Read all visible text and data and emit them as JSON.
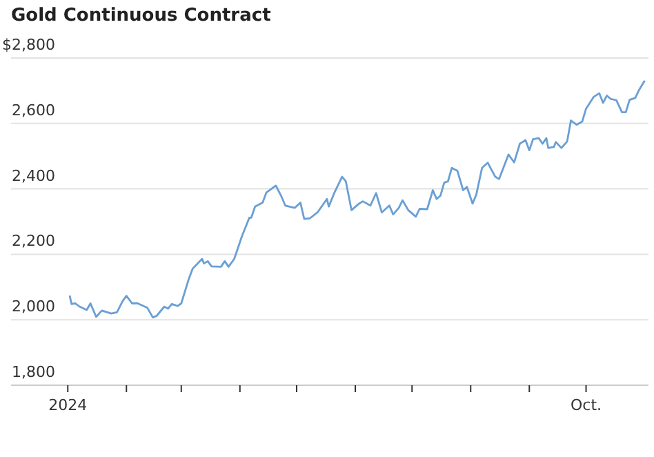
{
  "chart_data": {
    "type": "line",
    "title": "Gold Continuous Contract",
    "x": [
      "2024-01-02",
      "2024-01-03",
      "2024-01-05",
      "2024-01-07",
      "2024-01-11",
      "2024-01-13",
      "2024-01-16",
      "2024-01-19",
      "2024-01-24",
      "2024-01-27",
      "2024-01-30",
      "2024-02-01",
      "2024-02-04",
      "2024-02-07",
      "2024-02-12",
      "2024-02-15",
      "2024-02-17",
      "2024-02-21",
      "2024-02-23",
      "2024-02-25",
      "2024-02-28",
      "2024-03-01",
      "2024-03-05",
      "2024-03-07",
      "2024-03-12",
      "2024-03-13",
      "2024-03-15",
      "2024-03-17",
      "2024-03-22",
      "2024-03-24",
      "2024-03-26",
      "2024-03-29",
      "2024-04-02",
      "2024-04-06",
      "2024-04-07",
      "2024-04-09",
      "2024-04-13",
      "2024-04-15",
      "2024-04-20",
      "2024-04-23",
      "2024-04-25",
      "2024-04-30",
      "2024-05-03",
      "2024-05-05",
      "2024-05-08",
      "2024-05-12",
      "2024-05-17",
      "2024-05-18",
      "2024-05-21",
      "2024-05-25",
      "2024-05-27",
      "2024-05-30",
      "2024-06-03",
      "2024-06-05",
      "2024-06-09",
      "2024-06-12",
      "2024-06-15",
      "2024-06-19",
      "2024-06-21",
      "2024-06-24",
      "2024-06-26",
      "2024-06-29",
      "2024-07-03",
      "2024-07-05",
      "2024-07-09",
      "2024-07-12",
      "2024-07-14",
      "2024-07-16",
      "2024-07-18",
      "2024-07-20",
      "2024-07-22",
      "2024-07-25",
      "2024-07-28",
      "2024-07-30",
      "2024-08-02",
      "2024-08-04",
      "2024-08-07",
      "2024-08-10",
      "2024-08-14",
      "2024-08-16",
      "2024-08-18",
      "2024-08-21",
      "2024-08-24",
      "2024-08-27",
      "2024-08-30",
      "2024-09-01",
      "2024-09-03",
      "2024-09-06",
      "2024-09-08",
      "2024-09-10",
      "2024-09-11",
      "2024-09-14",
      "2024-09-15",
      "2024-09-18",
      "2024-09-21",
      "2024-09-23",
      "2024-09-26",
      "2024-09-29",
      "2024-10-01",
      "2024-10-05",
      "2024-10-08",
      "2024-10-10",
      "2024-10-12",
      "2024-10-14",
      "2024-10-17",
      "2024-10-20",
      "2024-10-22",
      "2024-10-24",
      "2024-10-27",
      "2024-10-29",
      "2024-11-01"
    ],
    "values": [
      2074,
      2048,
      2050,
      2041,
      2030,
      2050,
      2009,
      2028,
      2019,
      2023,
      2057,
      2073,
      2050,
      2050,
      2037,
      2007,
      2012,
      2040,
      2034,
      2048,
      2042,
      2050,
      2125,
      2156,
      2186,
      2172,
      2179,
      2163,
      2162,
      2179,
      2162,
      2186,
      2254,
      2312,
      2312,
      2346,
      2358,
      2389,
      2410,
      2376,
      2349,
      2342,
      2358,
      2308,
      2310,
      2328,
      2369,
      2346,
      2389,
      2437,
      2423,
      2335,
      2355,
      2362,
      2349,
      2387,
      2328,
      2349,
      2322,
      2342,
      2365,
      2335,
      2315,
      2339,
      2338,
      2396,
      2369,
      2379,
      2419,
      2423,
      2464,
      2455,
      2396,
      2406,
      2355,
      2383,
      2464,
      2480,
      2437,
      2430,
      2460,
      2505,
      2481,
      2538,
      2549,
      2518,
      2552,
      2555,
      2538,
      2555,
      2525,
      2528,
      2543,
      2525,
      2545,
      2609,
      2596,
      2606,
      2645,
      2681,
      2692,
      2663,
      2685,
      2675,
      2671,
      2634,
      2634,
      2672,
      2678,
      2702,
      2731
    ],
    "color": "#6a9fd4",
    "xlim": [
      "2023-12-02",
      "2024-11-03"
    ],
    "xticks": [
      {
        "value": "2024-01-01",
        "label": "2024"
      },
      {
        "value": "2024-02-01",
        "label": null
      },
      {
        "value": "2024-03-01",
        "label": null
      },
      {
        "value": "2024-04-01",
        "label": null
      },
      {
        "value": "2024-05-01",
        "label": null
      },
      {
        "value": "2024-06-01",
        "label": null
      },
      {
        "value": "2024-07-01",
        "label": null
      },
      {
        "value": "2024-08-01",
        "label": null
      },
      {
        "value": "2024-09-01",
        "label": null
      },
      {
        "value": "2024-10-01",
        "label": "Oct."
      }
    ],
    "ylim": [
      1800,
      2800
    ],
    "yticks": [
      {
        "value": 1800,
        "label": "1,800"
      },
      {
        "value": 2000,
        "label": "2,000"
      },
      {
        "value": 2200,
        "label": "2,200"
      },
      {
        "value": 2400,
        "label": "2,400"
      },
      {
        "value": 2600,
        "label": "2,600"
      },
      {
        "value": 2800,
        "label": "$2,800"
      }
    ],
    "grid": "y",
    "marker": "none",
    "line_style": "solid"
  }
}
